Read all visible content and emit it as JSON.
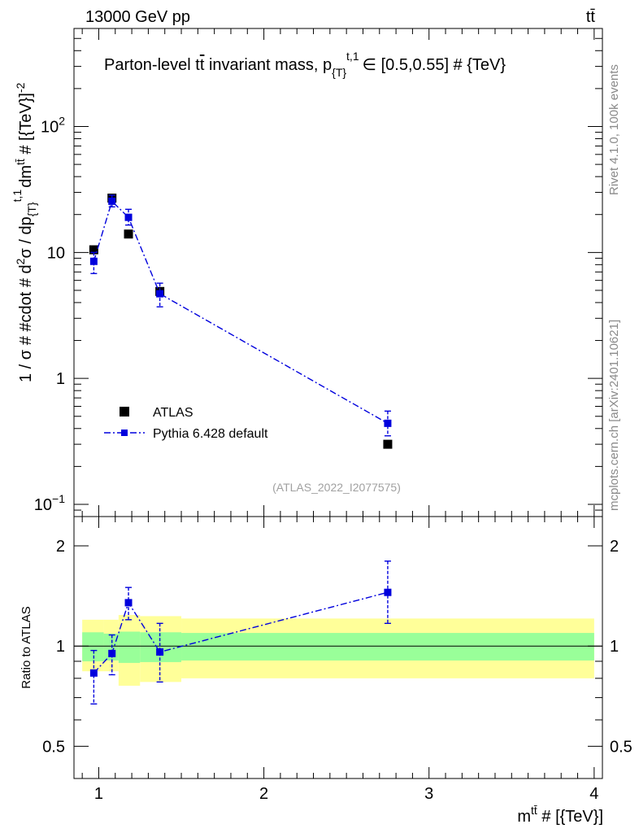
{
  "header": {
    "energy_label": "13000 GeV pp",
    "process_label": "tt̄"
  },
  "side_labels": {
    "rivet": "Rivet 4.1.0,  100k events",
    "mcplots": "mcplots.cern.ch [arXiv:2401.10621]"
  },
  "chart_data": [
    {
      "type": "scatter",
      "panel": "main",
      "title": "Parton-level tt̄ invariant mass, p_{T}^{t,1} ∈ [0.5,0.55] # {TeV}",
      "title_parts": {
        "pre": "Parton-level t",
        "tbar": "t",
        "mid": " invariant mass, p",
        "sub": "{T}",
        "sup": "t,1",
        "post": "∈ [0.5,0.55] # {TeV}"
      },
      "ylabel": "1 / σ # #cdot # d²σ / dp_{T}^{t,1} dm^{tt̄} # [{TeV}]^{-2}",
      "ylabel_parts": {
        "a": "1 / σ # #cdot # d",
        "b": "σ / dp",
        "c": "dm",
        "d": " # [{TeV}]",
        "sq": "2",
        "sub": "{T}",
        "sup": "t,1",
        "tt": "tt̄",
        "m2": "-2"
      },
      "yscale": "log",
      "ylim": [
        0.08,
        600
      ],
      "xlim": [
        0.85,
        4.05
      ],
      "y_ticks": [
        {
          "value": 0.1,
          "base": "10",
          "exp": "−1"
        },
        {
          "value": 1,
          "base": "1",
          "exp": ""
        },
        {
          "value": 10,
          "base": "10",
          "exp": ""
        },
        {
          "value": 100,
          "base": "10",
          "exp": "2"
        }
      ],
      "watermark": "(ATLAS_2022_I2077575)",
      "legend_position": "lower-left",
      "series": [
        {
          "name": "ATLAS",
          "style": "black-square-markers",
          "color": "#000000",
          "points": [
            {
              "x": 0.97,
              "y": 10.5
            },
            {
              "x": 1.08,
              "y": 27.0
            },
            {
              "x": 1.18,
              "y": 14.0
            },
            {
              "x": 1.37,
              "y": 4.9
            },
            {
              "x": 2.75,
              "y": 0.3
            }
          ]
        },
        {
          "name": "Pythia 6.428 default",
          "style": "blue-dashdot-line-with-square-markers",
          "color": "#0000dd",
          "points": [
            {
              "x": 0.97,
              "y": 8.5,
              "ylo": 6.8,
              "yhi": 10.0
            },
            {
              "x": 1.08,
              "y": 25.5,
              "ylo": 23.0,
              "yhi": 28.5
            },
            {
              "x": 1.18,
              "y": 19.0,
              "ylo": 16.5,
              "yhi": 22.0
            },
            {
              "x": 1.37,
              "y": 4.7,
              "ylo": 3.7,
              "yhi": 5.7
            },
            {
              "x": 2.75,
              "y": 0.44,
              "ylo": 0.35,
              "yhi": 0.55
            }
          ]
        }
      ]
    },
    {
      "type": "scatter",
      "panel": "ratio",
      "ylabel": "Ratio to ATLAS",
      "xlabel": "m^{tt̄} # [{TeV}]",
      "xlabel_parts": {
        "m": "m",
        "sup": "tt̄",
        "post": " # [{TeV}]"
      },
      "yscale": "log",
      "ylim": [
        0.4,
        2.45
      ],
      "xlim": [
        0.85,
        4.05
      ],
      "x_ticks": [
        "1",
        "2",
        "3",
        "4"
      ],
      "y_ticks": [
        "0.5",
        "1",
        "2"
      ],
      "reference_line": 1,
      "bands": {
        "green": {
          "color": "#99ff99",
          "bins": [
            {
              "x0": 0.9,
              "x1": 1.03,
              "lo": 0.9,
              "hi": 1.1
            },
            {
              "x0": 1.03,
              "x1": 1.12,
              "lo": 0.905,
              "hi": 1.09
            },
            {
              "x0": 1.12,
              "x1": 1.25,
              "lo": 0.89,
              "hi": 1.105
            },
            {
              "x0": 1.25,
              "x1": 1.5,
              "lo": 0.895,
              "hi": 1.1
            },
            {
              "x0": 1.5,
              "x1": 4.0,
              "lo": 0.905,
              "hi": 1.095
            }
          ]
        },
        "yellow": {
          "color": "#ffff99",
          "bins": [
            {
              "x0": 0.9,
              "x1": 1.03,
              "lo": 0.84,
              "hi": 1.2
            },
            {
              "x0": 1.03,
              "x1": 1.12,
              "lo": 0.84,
              "hi": 1.2
            },
            {
              "x0": 1.12,
              "x1": 1.25,
              "lo": 0.76,
              "hi": 1.24
            },
            {
              "x0": 1.25,
              "x1": 1.5,
              "lo": 0.78,
              "hi": 1.23
            },
            {
              "x0": 1.5,
              "x1": 4.0,
              "lo": 0.8,
              "hi": 1.21
            }
          ]
        }
      },
      "series": [
        {
          "name": "Pythia 6.428 default",
          "color": "#0000dd",
          "points": [
            {
              "x": 0.97,
              "y": 0.83,
              "ylo": 0.67,
              "yhi": 0.97
            },
            {
              "x": 1.08,
              "y": 0.95,
              "ylo": 0.82,
              "yhi": 1.08
            },
            {
              "x": 1.18,
              "y": 1.35,
              "ylo": 1.2,
              "yhi": 1.5
            },
            {
              "x": 1.37,
              "y": 0.96,
              "ylo": 0.78,
              "yhi": 1.17
            },
            {
              "x": 2.75,
              "y": 1.45,
              "ylo": 1.17,
              "yhi": 1.8
            }
          ]
        }
      ]
    }
  ]
}
